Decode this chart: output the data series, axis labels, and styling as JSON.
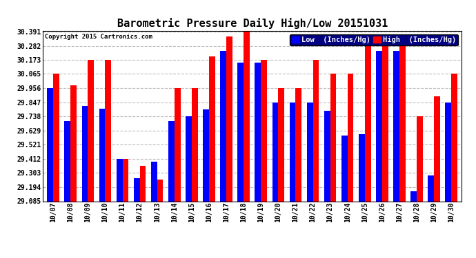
{
  "title": "Barometric Pressure Daily High/Low 20151031",
  "copyright": "Copyright 2015 Cartronics.com",
  "legend_low": "Low  (Inches/Hg)",
  "legend_high": "High  (Inches/Hg)",
  "dates": [
    "10/07",
    "10/08",
    "10/09",
    "10/10",
    "10/11",
    "10/12",
    "10/13",
    "10/14",
    "10/15",
    "10/16",
    "10/17",
    "10/18",
    "10/19",
    "10/20",
    "10/21",
    "10/22",
    "10/23",
    "10/24",
    "10/25",
    "10/26",
    "10/27",
    "10/28",
    "10/29",
    "10/30"
  ],
  "low": [
    29.956,
    29.7,
    29.82,
    29.8,
    29.412,
    29.26,
    29.39,
    29.7,
    29.738,
    29.79,
    30.24,
    30.15,
    30.15,
    29.847,
    29.847,
    29.847,
    29.78,
    29.59,
    29.6,
    30.24,
    30.24,
    29.16,
    29.285,
    29.847
  ],
  "high": [
    30.065,
    29.98,
    30.173,
    30.173,
    29.412,
    29.36,
    29.25,
    29.956,
    29.956,
    30.2,
    30.355,
    30.391,
    30.173,
    29.956,
    29.956,
    30.173,
    30.065,
    30.065,
    30.282,
    30.355,
    30.282,
    29.738,
    29.892,
    30.065
  ],
  "ylim_min": 29.085,
  "ylim_max": 30.391,
  "yticks": [
    29.085,
    29.194,
    29.303,
    29.412,
    29.521,
    29.629,
    29.738,
    29.847,
    29.956,
    30.065,
    30.173,
    30.282,
    30.391
  ],
  "bar_width": 0.35,
  "low_color": "#0000ff",
  "high_color": "#ff0000",
  "bg_color": "#ffffff",
  "grid_color": "#bbbbbb",
  "title_fontsize": 11,
  "tick_fontsize": 7,
  "legend_fontsize": 7.5
}
